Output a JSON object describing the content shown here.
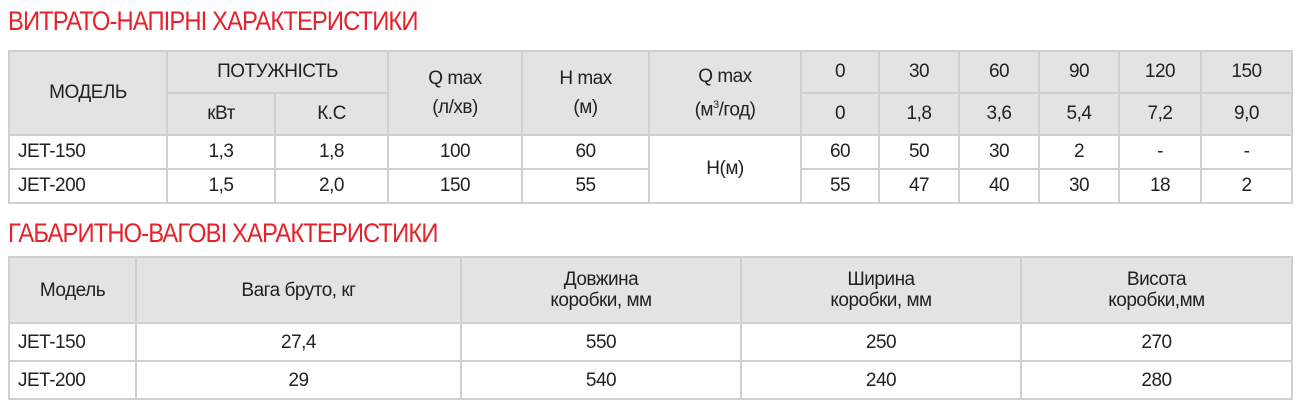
{
  "section1": {
    "title": "ВИТРАТО-НАПІРНІ ХАРАКТЕРИСТИКИ",
    "headers": {
      "model": "МОДЕЛЬ",
      "power": "ПОТУЖНІСТЬ",
      "kw": "кВт",
      "hp": "К.С",
      "qmax1": "Q max",
      "qmax1_unit": "(л/хв)",
      "hmax": "H max",
      "hmax_unit": "(м)",
      "qmax2": "Q max",
      "qmax2_unit_a": "(м",
      "qmax2_unit_sup": "3",
      "qmax2_unit_b": "/год)",
      "head": "H(м)"
    },
    "flow_lmin": [
      "0",
      "30",
      "60",
      "90",
      "120",
      "150"
    ],
    "flow_m3h": [
      "0",
      "1,8",
      "3,6",
      "5,4",
      "7,2",
      "9,0"
    ],
    "rows": [
      {
        "model": "JET-150",
        "kw": "1,3",
        "hp": "1,8",
        "qmax": "100",
        "hmax": "60",
        "heads": [
          "60",
          "50",
          "30",
          "2",
          "-",
          "-"
        ]
      },
      {
        "model": "JET-200",
        "kw": "1,5",
        "hp": "2,0",
        "qmax": "150",
        "hmax": "55",
        "heads": [
          "55",
          "47",
          "40",
          "30",
          "18",
          "2"
        ]
      }
    ]
  },
  "section2": {
    "title": "ГАБАРИТНО-ВАГОВІ ХАРАКТЕРИСТИКИ",
    "headers": {
      "model": "Модель",
      "weight": "Вага бруто, кг",
      "length_a": "Довжина",
      "length_b": "коробки, мм",
      "width_a": "Ширина",
      "width_b": "коробки, мм",
      "height_a": "Висота",
      "height_b": "коробки,мм"
    },
    "rows": [
      {
        "model": "JET-150",
        "weight": "27,4",
        "length": "550",
        "width": "250",
        "height": "270"
      },
      {
        "model": "JET-200",
        "weight": "29",
        "length": "540",
        "width": "240",
        "height": "280"
      }
    ]
  },
  "colors": {
    "title": "#e62129",
    "header_bg": "#e3e3e3",
    "border": "#d0d0d0"
  }
}
